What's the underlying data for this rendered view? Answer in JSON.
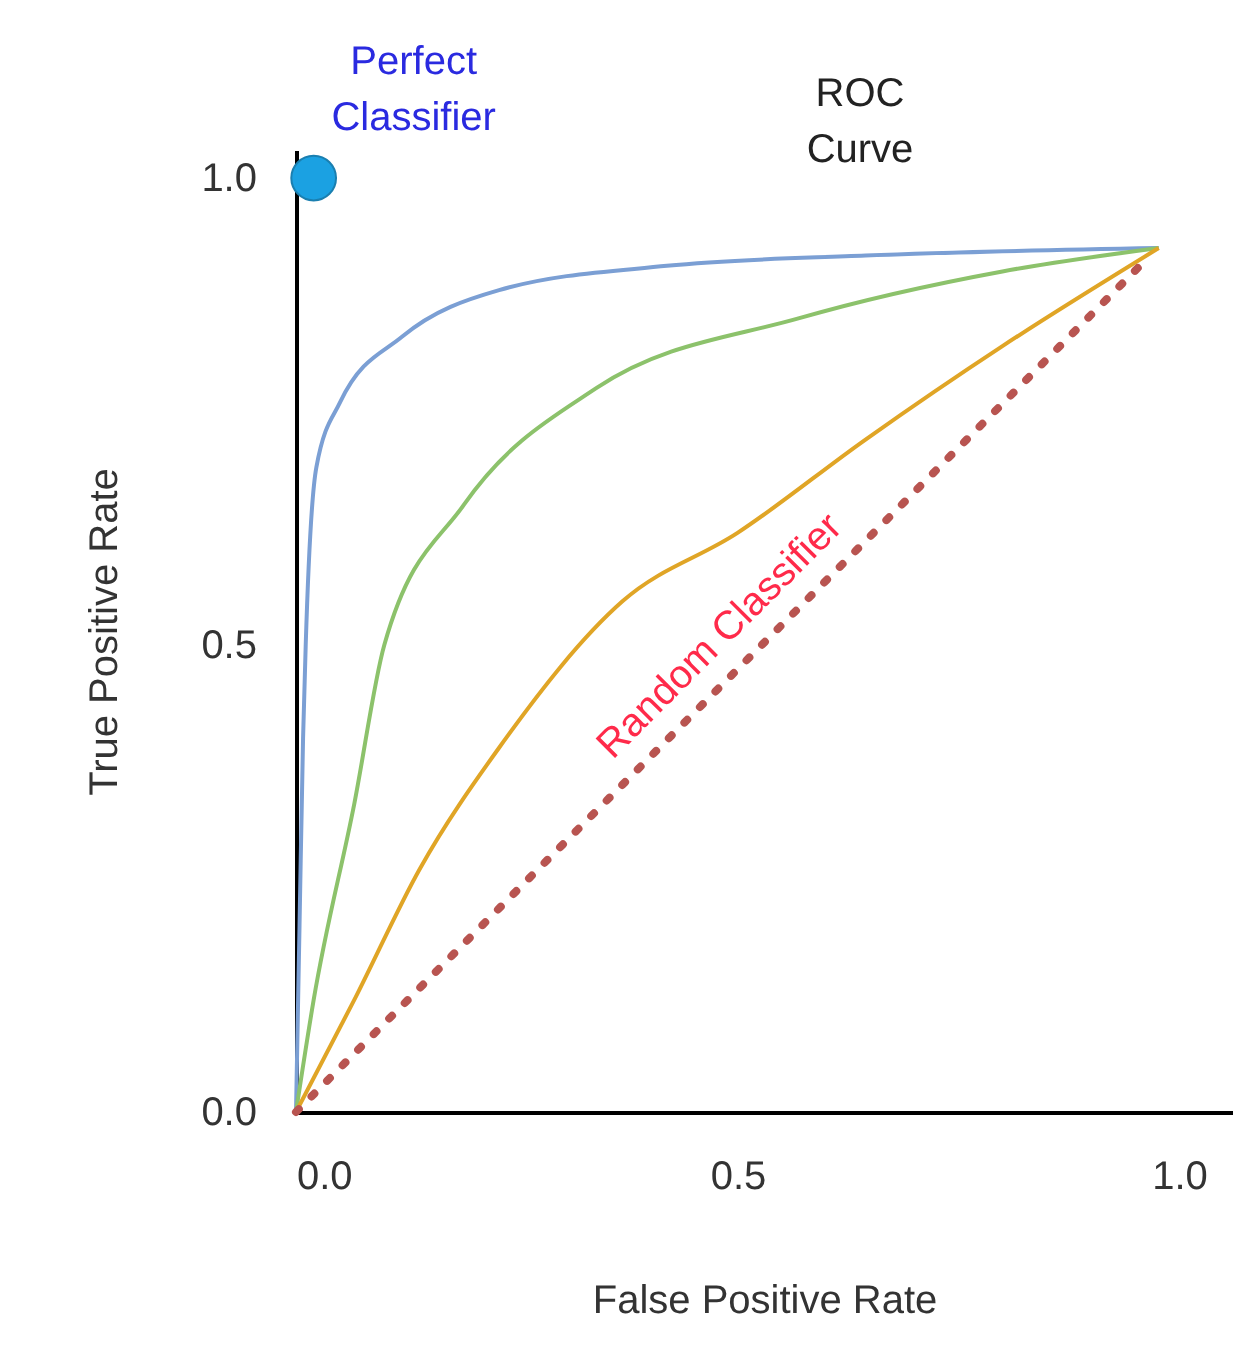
{
  "chart_data": {
    "type": "line",
    "xlabel": "False Positive Rate",
    "ylabel": "True Positive Rate",
    "annotations": [
      "ROC Curve"
    ],
    "xlim": [
      0,
      1.06
    ],
    "ylim": [
      0,
      1.03
    ],
    "xticks": [
      {
        "value": 0,
        "label": "0.0"
      },
      0.5,
      {
        "value": 1,
        "label": "1.0"
      }
    ],
    "yticks": [
      {
        "value": 0,
        "label": "0.0"
      },
      0.5,
      {
        "value": 1,
        "label": "1.0"
      }
    ],
    "grid": false,
    "legend": false,
    "marker": "none",
    "series": [
      {
        "color": "#7b9fd4",
        "line_style": "solid",
        "x": [
          0,
          0.004,
          0.008,
          0.011,
          0.023,
          0.05,
          0.12,
          0.23,
          0.42,
          0.645,
          0.977
        ],
        "values": [
          0,
          0.2,
          0.4,
          0.5,
          0.69,
          0.76,
          0.83,
          0.88,
          0.906,
          0.917,
          0.925
        ]
      },
      {
        "color": "#8cc26b",
        "line_style": "solid",
        "x": [
          0,
          0.02,
          0.066,
          0.1,
          0.19,
          0.34,
          0.57,
          0.8,
          0.977
        ],
        "values": [
          0,
          0.12,
          0.33,
          0.5,
          0.65,
          0.775,
          0.85,
          0.9,
          0.925
        ]
      },
      {
        "color": "#e0a526",
        "line_style": "solid",
        "x": [
          0,
          0.066,
          0.14,
          0.23,
          0.37,
          0.5,
          0.645,
          0.8,
          0.977
        ],
        "values": [
          0,
          0.12,
          0.26,
          0.39,
          0.547,
          0.62,
          0.72,
          0.82,
          0.925
        ]
      },
      {
        "name": "Random Classifier",
        "color": "#b85450",
        "line_style": "dotted",
        "x": [
          0,
          0.96
        ],
        "values": [
          0,
          0.91
        ]
      },
      {
        "name": "Perfect Classifier",
        "type": "scatter",
        "marker": "circle",
        "color": "#1ba1e2",
        "x": [
          0.02
        ],
        "values": [
          1.0
        ]
      }
    ]
  }
}
